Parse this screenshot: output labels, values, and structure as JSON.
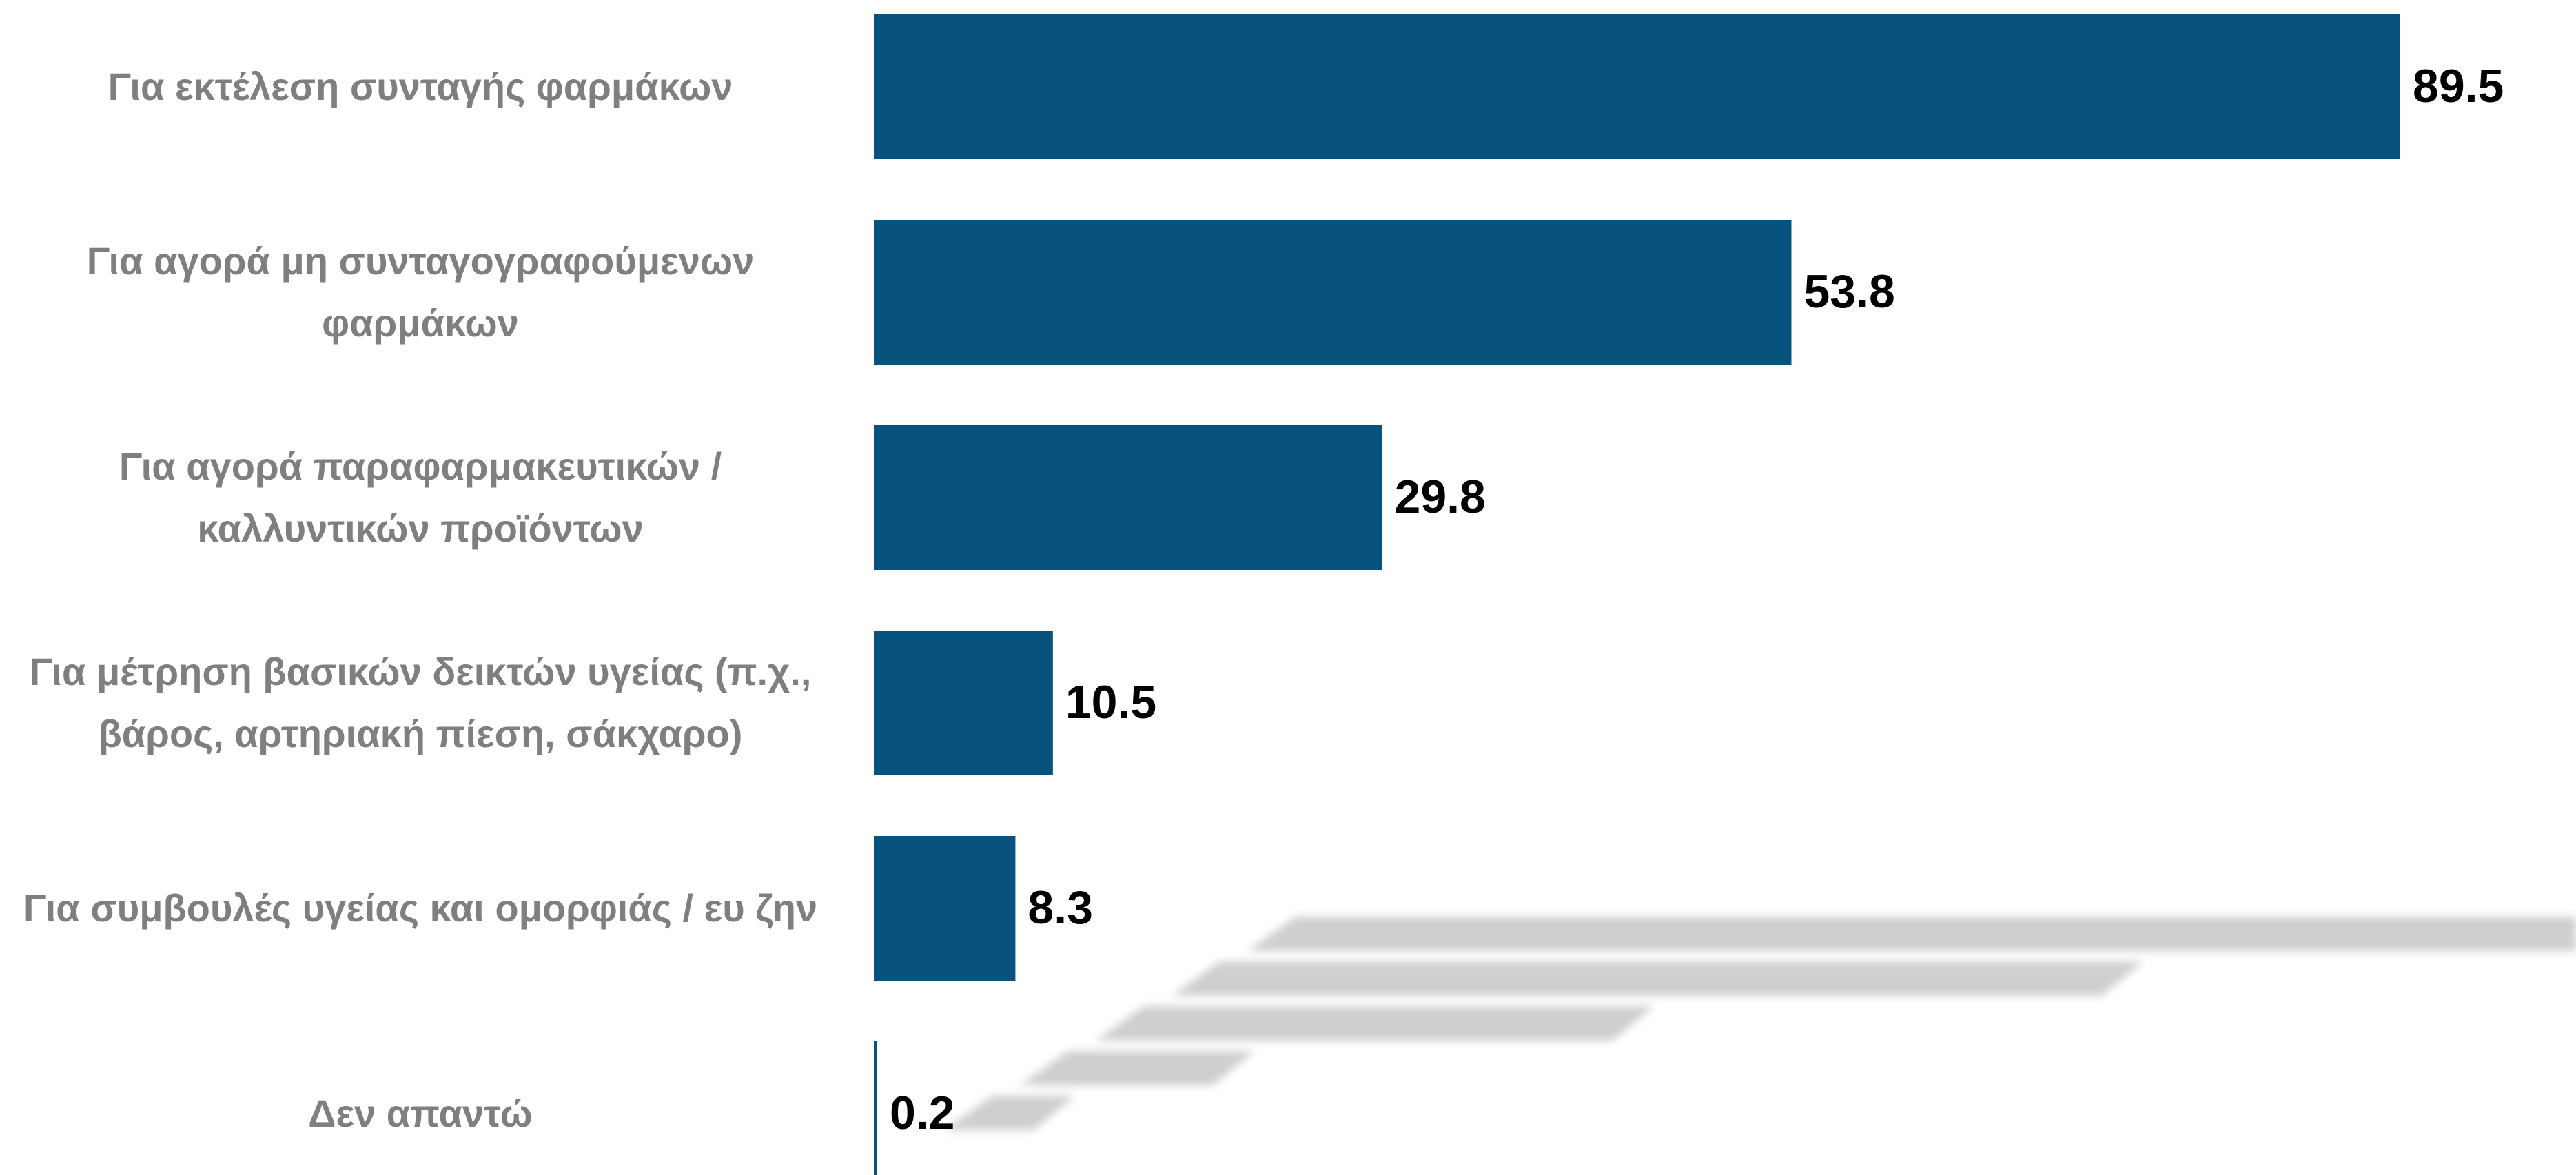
{
  "chart_data": {
    "type": "hbar",
    "categories": [
      "Για εκτέλεση συνταγής φαρμάκων",
      "Για αγορά μη συνταγογραφούμενων φαρμάκων",
      "Για αγορά παραφαρμακευτικών / καλλυντικών προϊόντων",
      "Για μέτρηση βασικών δεικτών υγείας (π.χ., βάρος, αρτηριακή πίεση, σάκχαρο)",
      "Για συμβουλές υγείας και ομορφιάς / ευ ζην",
      "Δεν απαντώ"
    ],
    "values": [
      89.5,
      53.8,
      29.8,
      10.5,
      8.3,
      0.2
    ],
    "color": "#08527e"
  }
}
